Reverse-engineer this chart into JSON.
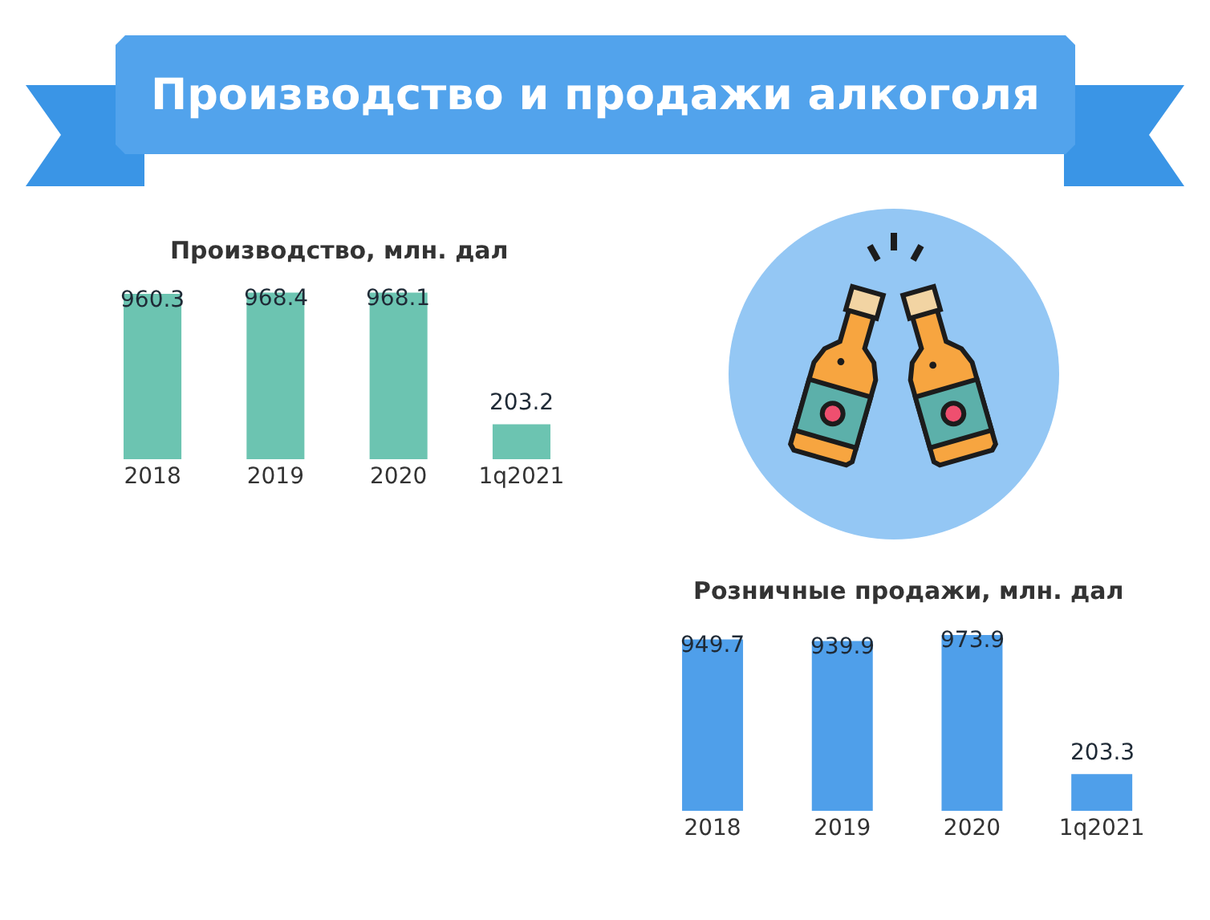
{
  "chart_data": [
    {
      "type": "other",
      "title": "Производство и продажи алкоголя"
    },
    {
      "type": "bar",
      "title": "Производство, млн. дал",
      "categories": [
        "2018",
        "2019",
        "2020",
        "1q2021"
      ],
      "values": [
        960.3,
        968.4,
        968.1,
        203.2
      ],
      "color": "#6cc4b1",
      "data_labels": true,
      "tick_labels": "x"
    },
    {
      "type": "bar",
      "title": "Розничные продажи, млн. дал",
      "categories": [
        "2018",
        "2019",
        "2020",
        "1q2021"
      ],
      "values": [
        949.7,
        939.9,
        973.9,
        203.3
      ],
      "color": "#4f9fea",
      "data_labels": true,
      "tick_labels": "x"
    }
  ]
}
